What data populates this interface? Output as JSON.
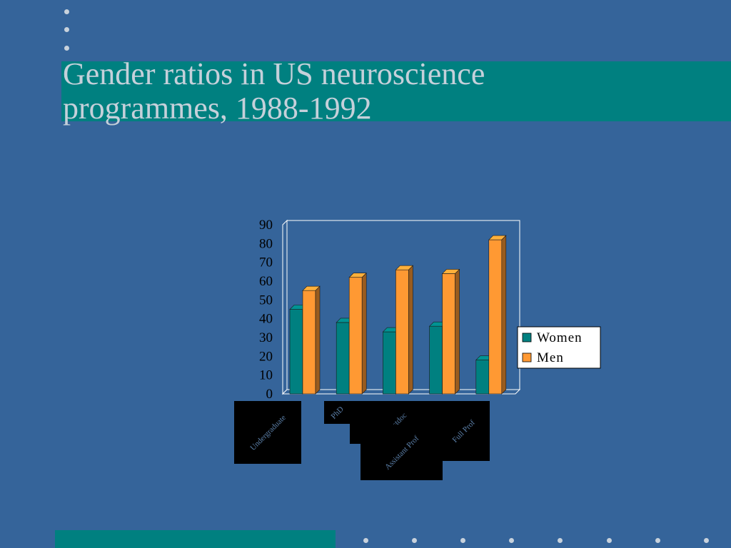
{
  "slide": {
    "title_lines": [
      "Gender ratios in US neuroscience",
      "programmes, 1988-1992"
    ],
    "colors": {
      "background": "#35649a",
      "accent_band": "#008080",
      "title_text": "#c5d0da",
      "bullet_dots": "#c8d2dc"
    }
  },
  "chart_data": {
    "type": "bar",
    "title": "",
    "categories": [
      "Undergraduate",
      "PhD",
      "Postdoc",
      "Assistant Prof",
      "Full Prof"
    ],
    "series": [
      {
        "name": "Women",
        "values": [
          45,
          38,
          33,
          36,
          18
        ],
        "color": "#008080"
      },
      {
        "name": "Men",
        "values": [
          55,
          62,
          66,
          64,
          82
        ],
        "color": "#ff9933"
      }
    ],
    "ylim": [
      0,
      90
    ],
    "yticks": [
      0,
      10,
      20,
      30,
      40,
      50,
      60,
      70,
      80,
      90
    ],
    "xlabel": "",
    "ylabel": "",
    "grid": false,
    "legend": "right",
    "bar_style": "3d"
  }
}
